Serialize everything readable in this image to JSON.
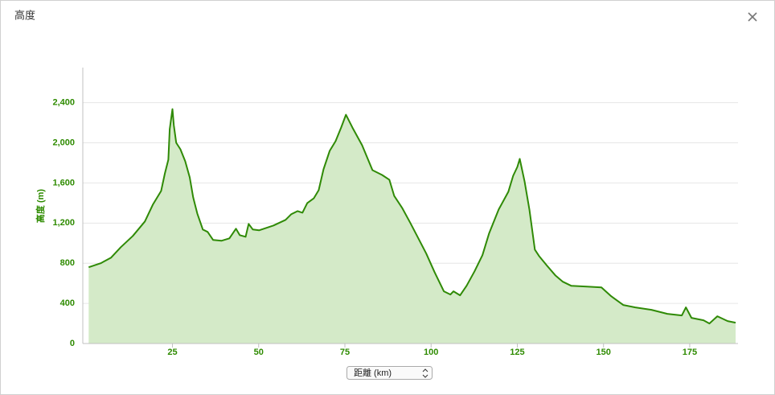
{
  "dialog": {
    "title": "高度",
    "x_selector": "距離 (km)"
  },
  "chart_data": {
    "type": "area",
    "y_label": "高度 (m)",
    "color": "#2f8a06",
    "fill": "#d4eac8",
    "x": [
      0.7,
      4.2,
      7.2,
      10,
      13.5,
      17,
      19.3,
      21.7,
      22.8,
      23.8,
      24.2,
      25,
      25.4,
      26.1,
      27.3,
      28.7,
      30,
      31,
      32.2,
      33.8,
      35.2,
      36.8,
      39.2,
      41.5,
      43.4,
      44.5,
      46.2,
      47.1,
      48.3,
      50.1,
      54.3,
      57.8,
      59.4,
      61.3,
      62.7,
      64.1,
      66,
      67.4,
      68.8,
      70.6,
      72.3,
      73.9,
      75.3,
      77.2,
      80,
      83,
      85.8,
      87.9,
      89.3,
      91.6,
      94,
      96.3,
      98.6,
      101,
      103.7,
      105.6,
      106.5,
      108.4,
      110.3,
      112.6,
      114.9,
      116.8,
      119.6,
      122.4,
      123.8,
      125,
      125.7,
      127.1,
      128.5,
      130.1,
      131.3,
      133.6,
      136,
      138.2,
      140.6,
      145.2,
      149.4,
      152.2,
      155.7,
      159.2,
      163.9,
      168.5,
      172.7,
      173.9,
      175.5,
      179,
      180.7,
      183,
      186,
      188.3
    ],
    "values": [
      760,
      800,
      856,
      960,
      1072,
      1216,
      1384,
      1520,
      1696,
      1832,
      2136,
      2336,
      2176,
      2000,
      1936,
      1816,
      1656,
      1456,
      1296,
      1136,
      1112,
      1032,
      1024,
      1048,
      1144,
      1080,
      1064,
      1192,
      1136,
      1128,
      1176,
      1232,
      1288,
      1320,
      1304,
      1400,
      1448,
      1528,
      1736,
      1920,
      2016,
      2152,
      2280,
      2152,
      1976,
      1728,
      1680,
      1632,
      1472,
      1352,
      1200,
      1048,
      896,
      712,
      520,
      488,
      520,
      480,
      576,
      720,
      880,
      1096,
      1336,
      1512,
      1672,
      1760,
      1840,
      1616,
      1336,
      936,
      872,
      776,
      680,
      616,
      576,
      568,
      560,
      472,
      384,
      360,
      336,
      296,
      280,
      360,
      256,
      232,
      200,
      272,
      224,
      208
    ],
    "xlim": [
      -1,
      189
    ],
    "xticks": [
      25,
      50,
      75,
      100,
      125,
      150,
      175
    ],
    "ylim": [
      0,
      2750
    ],
    "yticks": [
      0,
      {
        "value": 400,
        "label": "400"
      },
      {
        "value": 800,
        "label": "800"
      },
      {
        "value": 1200,
        "label": "1,200"
      },
      {
        "value": 1600,
        "label": "1,600"
      },
      {
        "value": 2000,
        "label": "2,000"
      },
      {
        "value": 2400,
        "label": "2,400"
      }
    ],
    "grid": true
  }
}
